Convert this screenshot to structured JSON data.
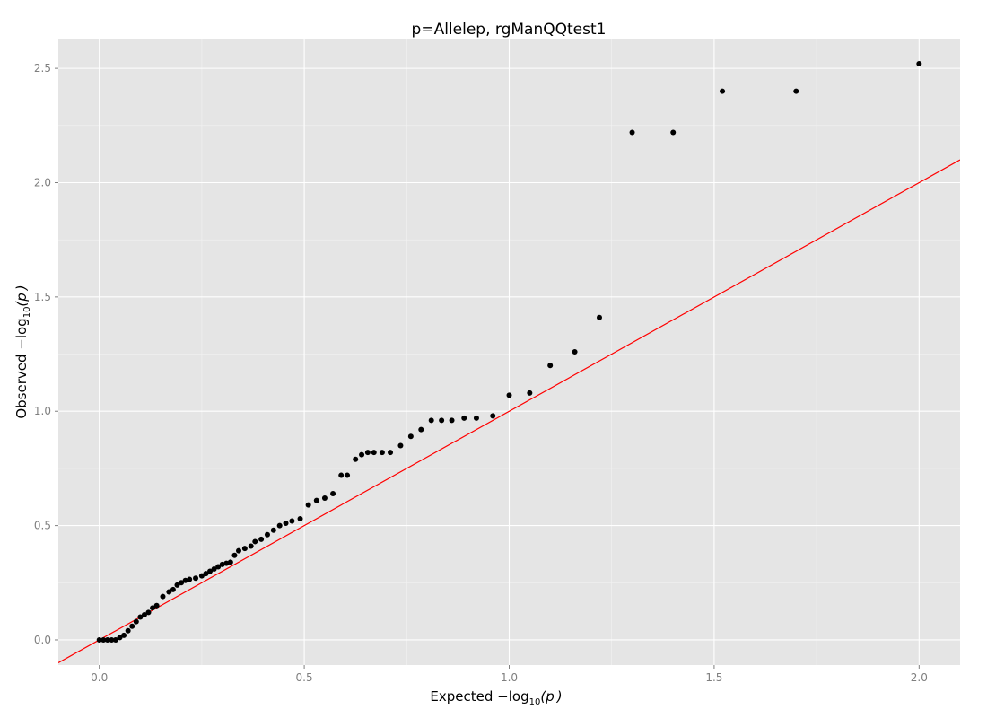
{
  "chart_data": {
    "type": "scatter",
    "title": "p=Allelep, rgManQQtest1",
    "xlabel": {
      "main": "Expected  −log",
      "sub": "10",
      "rest": "(p )"
    },
    "ylabel": {
      "main": "Observed  −log",
      "sub": "10",
      "rest": "(p )"
    },
    "xlim": [
      -0.1,
      2.1
    ],
    "ylim": [
      -0.11,
      2.63
    ],
    "x_ticks": [
      0.0,
      0.5,
      1.0,
      1.5,
      2.0
    ],
    "x_tick_labels": [
      "0.0",
      "0.5",
      "1.0",
      "1.5",
      "2.0"
    ],
    "y_ticks": [
      0.0,
      0.5,
      1.0,
      1.5,
      2.0,
      2.5
    ],
    "y_tick_labels": [
      "0.0",
      "0.5",
      "1.0",
      "1.5",
      "2.0",
      "2.5"
    ],
    "grid": true,
    "background": "#e5e5e5",
    "point_color": "#000000",
    "reference_line": {
      "slope": 1,
      "intercept": 0,
      "color": "#ff0000"
    },
    "points": {
      "x": [
        0.0,
        0.01,
        0.02,
        0.03,
        0.04,
        0.05,
        0.06,
        0.07,
        0.08,
        0.09,
        0.1,
        0.11,
        0.12,
        0.13,
        0.14,
        0.155,
        0.17,
        0.18,
        0.19,
        0.2,
        0.21,
        0.22,
        0.235,
        0.25,
        0.26,
        0.27,
        0.28,
        0.29,
        0.3,
        0.31,
        0.32,
        0.33,
        0.34,
        0.355,
        0.37,
        0.38,
        0.395,
        0.41,
        0.425,
        0.44,
        0.455,
        0.47,
        0.49,
        0.51,
        0.53,
        0.55,
        0.57,
        0.59,
        0.605,
        0.625,
        0.64,
        0.655,
        0.67,
        0.69,
        0.71,
        0.735,
        0.76,
        0.785,
        0.81,
        0.835,
        0.86,
        0.89,
        0.92,
        0.96,
        1.0,
        1.05,
        1.1,
        1.16,
        1.22,
        1.3,
        1.4,
        1.52,
        1.7,
        2.0
      ],
      "y": [
        0.0,
        0.0,
        0.0,
        0.0,
        0.0,
        0.01,
        0.02,
        0.04,
        0.06,
        0.08,
        0.1,
        0.11,
        0.12,
        0.14,
        0.15,
        0.19,
        0.21,
        0.22,
        0.24,
        0.25,
        0.26,
        0.265,
        0.27,
        0.28,
        0.29,
        0.3,
        0.31,
        0.32,
        0.33,
        0.335,
        0.34,
        0.37,
        0.39,
        0.4,
        0.41,
        0.43,
        0.44,
        0.46,
        0.48,
        0.5,
        0.51,
        0.52,
        0.53,
        0.59,
        0.61,
        0.62,
        0.64,
        0.72,
        0.72,
        0.79,
        0.81,
        0.82,
        0.82,
        0.82,
        0.82,
        0.85,
        0.89,
        0.92,
        0.96,
        0.96,
        0.96,
        0.97,
        0.97,
        0.98,
        1.07,
        1.08,
        1.2,
        1.26,
        1.41,
        2.22,
        2.22,
        2.4,
        2.4,
        2.52
      ]
    }
  }
}
